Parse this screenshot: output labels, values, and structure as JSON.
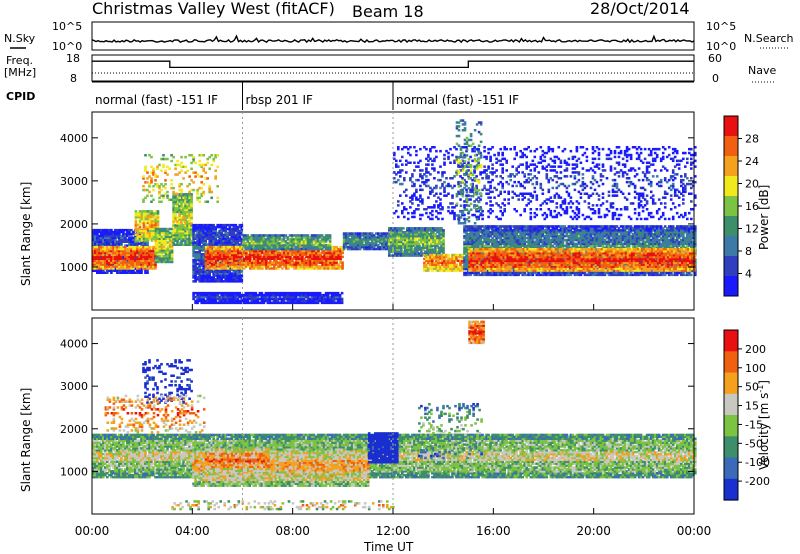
{
  "header": {
    "title": "Christmas Valley West (fitACF)",
    "beam": "Beam 18",
    "date": "28/Oct/2014"
  },
  "labels": {
    "nsky": "N.Sky",
    "nsearch": "N.Search",
    "freq_line1": "Freq.",
    "freq_line2": "[MHz]",
    "nave": "Nave",
    "cpid": "CPID",
    "xlabel": "Time UT",
    "slant_range": "Slant Range [km]",
    "power_label": "Power [dB]",
    "velocity_label": "Velocity [m s",
    "velocity_sup": "-1",
    "velocity_close": "]"
  },
  "noise_axes": {
    "left_ticks": [
      "10^5",
      "10^0"
    ],
    "right_ticks": [
      "10^5",
      "10^0"
    ]
  },
  "freq_axes": {
    "left_ticks": [
      "18",
      "8"
    ],
    "right_ticks": [
      "60",
      "0"
    ],
    "freq_steps": [
      {
        "t0": 0,
        "t1": 3.1,
        "mhz": 17
      },
      {
        "t0": 3.1,
        "t1": 15.0,
        "mhz": 14.2
      },
      {
        "t0": 15.0,
        "t1": 24,
        "mhz": 17
      }
    ]
  },
  "cpid_segments": [
    {
      "label": "normal (fast) -151 IF",
      "t0": 0,
      "t1": 6.0
    },
    {
      "label": "rbsp 201 IF",
      "t0": 6.0,
      "t1": 12.0
    },
    {
      "label": "normal (fast) -151 IF",
      "t0": 12.0,
      "t1": 24
    }
  ],
  "chart_data": [
    {
      "type": "heatmap",
      "name": "power",
      "ylabel": "Slant Range [km]",
      "xlabel": "",
      "xlim": [
        0,
        24
      ],
      "ylim": [
        0,
        4600
      ],
      "yticks": [
        1000,
        2000,
        3000,
        4000
      ],
      "colorbar": {
        "label": "Power [dB]",
        "ticks": [
          4,
          8,
          12,
          16,
          20,
          24,
          28
        ],
        "bounds": [
          0,
          32
        ],
        "colors": [
          "#1a1aff",
          "#2f3fbf",
          "#3d7aa8",
          "#3c8f6a",
          "#7cc243",
          "#f2e81e",
          "#f5a11e",
          "#f06010",
          "#e81010"
        ]
      },
      "regions": [
        {
          "t0": 0.0,
          "t1": 2.2,
          "r0": 850,
          "r1": 1850,
          "level": 2
        },
        {
          "t0": 0.0,
          "t1": 2.5,
          "r0": 950,
          "r1": 1450,
          "level": 8
        },
        {
          "t0": 1.7,
          "t1": 2.6,
          "r0": 1600,
          "r1": 2300,
          "level": 6
        },
        {
          "t0": 2.5,
          "t1": 3.2,
          "r0": 1100,
          "r1": 1900,
          "level": 5
        },
        {
          "t0": 3.2,
          "t1": 4.0,
          "r0": 1500,
          "r1": 2700,
          "level": 5
        },
        {
          "t0": 4.0,
          "t1": 6.0,
          "r0": 650,
          "r1": 2000,
          "level": 2
        },
        {
          "t0": 4.5,
          "t1": 10.0,
          "r0": 950,
          "r1": 1450,
          "level": 8
        },
        {
          "t0": 6.0,
          "t1": 9.5,
          "r0": 1400,
          "r1": 1750,
          "level": 4
        },
        {
          "t0": 10.0,
          "t1": 11.8,
          "r0": 1400,
          "r1": 1800,
          "level": 3
        },
        {
          "t0": 11.8,
          "t1": 14.0,
          "r0": 1250,
          "r1": 1900,
          "level": 4
        },
        {
          "t0": 13.2,
          "t1": 14.8,
          "r0": 900,
          "r1": 1300,
          "level": 7
        },
        {
          "t0": 14.8,
          "t1": 24.0,
          "r0": 800,
          "r1": 1950,
          "level": 3
        },
        {
          "t0": 15.0,
          "t1": 24.0,
          "r0": 900,
          "r1": 1400,
          "level": 8
        },
        {
          "t0": 4.0,
          "t1": 10.0,
          "r0": 150,
          "r1": 400,
          "level": 1
        },
        {
          "t0": 12.0,
          "t1": 24.0,
          "r0": 2100,
          "r1": 3800,
          "level": 1,
          "sparse": true
        },
        {
          "t0": 2.0,
          "t1": 5.0,
          "r0": 2500,
          "r1": 3600,
          "level": 6,
          "sparse": true
        },
        {
          "t0": 14.5,
          "t1": 15.5,
          "r0": 2000,
          "r1": 4400,
          "level": 4,
          "sparse": true
        }
      ]
    },
    {
      "type": "heatmap",
      "name": "velocity",
      "ylabel": "Slant Range [km]",
      "xlabel": "Time UT",
      "xlim": [
        0,
        24
      ],
      "ylim": [
        0,
        4600
      ],
      "yticks": [
        1000,
        2000,
        3000,
        4000
      ],
      "xticks": [
        "00:00",
        "04:00",
        "08:00",
        "12:00",
        "16:00",
        "20:00",
        "00:00"
      ],
      "colorbar": {
        "label": "Velocity [m s-1]",
        "ticks": [
          200,
          100,
          50,
          15,
          -15,
          -50,
          -100,
          -200
        ],
        "colors": [
          "#1a2fd0",
          "#3b6ab8",
          "#3c8f6a",
          "#7cc243",
          "#c8c8c0",
          "#f5a11e",
          "#f06010",
          "#e81010"
        ]
      },
      "regions": [
        {
          "t0": 0.0,
          "t1": 24.0,
          "r0": 850,
          "r1": 1850,
          "level": 4
        },
        {
          "t0": 4.0,
          "t1": 11.0,
          "r0": 650,
          "r1": 1600,
          "level": 5
        },
        {
          "t0": 4.5,
          "t1": 7.0,
          "r0": 1000,
          "r1": 1500,
          "level": 6
        },
        {
          "t0": 11.0,
          "t1": 12.2,
          "r0": 1200,
          "r1": 1900,
          "level": 0
        },
        {
          "t0": 13.0,
          "t1": 15.5,
          "r0": 1300,
          "r1": 2600,
          "level": 3,
          "sparse": true
        },
        {
          "t0": 2.0,
          "t1": 4.0,
          "r0": 2600,
          "r1": 3600,
          "level": 0,
          "sparse": true
        },
        {
          "t0": 0.5,
          "t1": 4.5,
          "r0": 1900,
          "r1": 2800,
          "level": 6,
          "sparse": true
        },
        {
          "t0": 15.0,
          "t1": 15.6,
          "r0": 4000,
          "r1": 4500,
          "level": 7
        },
        {
          "t0": 3.0,
          "t1": 12.0,
          "r0": 100,
          "r1": 300,
          "level": 5,
          "sparse": true
        }
      ]
    }
  ]
}
